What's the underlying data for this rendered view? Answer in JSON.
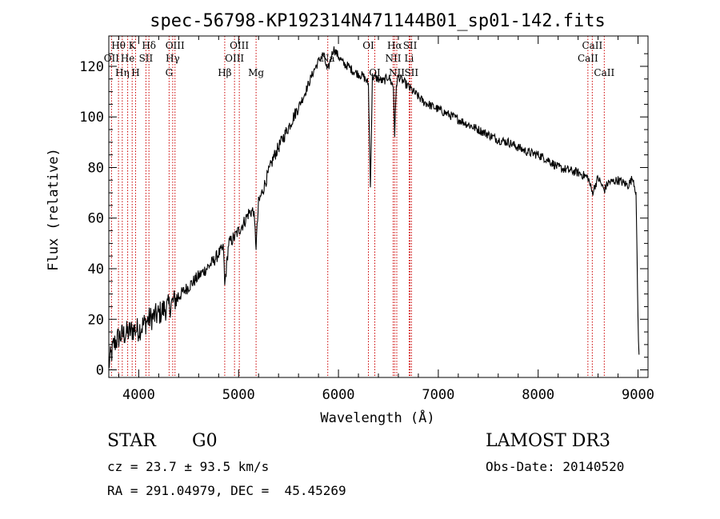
{
  "chart_data": {
    "type": "line",
    "title": "spec-56798-KP192314N471144B01_sp01-142.fits",
    "xlabel": "Wavelength (Å)",
    "ylabel": "Flux (relative)",
    "xlim": [
      3700,
      9100
    ],
    "ylim": [
      -3,
      132
    ],
    "xticks": [
      4000,
      5000,
      6000,
      7000,
      8000,
      9000
    ],
    "yticks": [
      0,
      20,
      40,
      60,
      80,
      100,
      120
    ],
    "series": [
      {
        "name": "spectrum",
        "x": [
          3700,
          3750,
          3800,
          3850,
          3900,
          3950,
          4000,
          4050,
          4100,
          4150,
          4200,
          4250,
          4300,
          4350,
          4400,
          4450,
          4500,
          4550,
          4600,
          4650,
          4700,
          4750,
          4800,
          4850,
          4861,
          4900,
          4950,
          5000,
          5050,
          5100,
          5150,
          5175,
          5200,
          5250,
          5300,
          5350,
          5400,
          5450,
          5500,
          5550,
          5600,
          5650,
          5700,
          5750,
          5800,
          5850,
          5890,
          5950,
          6000,
          6050,
          6100,
          6150,
          6200,
          6250,
          6300,
          6320,
          6340,
          6400,
          6450,
          6500,
          6550,
          6563,
          6580,
          6600,
          6650,
          6700,
          6750,
          6800,
          6850,
          6900,
          6950,
          7000,
          7100,
          7200,
          7300,
          7400,
          7500,
          7600,
          7700,
          7800,
          7900,
          8000,
          8100,
          8200,
          8300,
          8400,
          8500,
          8542,
          8600,
          8662,
          8700,
          8800,
          8900,
          8950,
          8980,
          9000,
          9010
        ],
        "values": [
          2,
          10,
          13,
          14,
          15,
          16,
          16,
          18,
          20,
          21,
          22,
          24,
          25,
          27,
          29,
          31,
          33,
          35,
          37,
          39,
          41,
          43,
          46,
          48,
          33,
          50,
          52,
          55,
          58,
          62,
          63,
          49,
          66,
          72,
          78,
          84,
          88,
          92,
          96,
          100,
          104,
          108,
          113,
          118,
          122,
          125,
          118,
          127,
          124,
          121,
          120,
          118,
          117,
          116,
          113,
          72,
          116,
          115,
          114,
          116,
          112,
          93,
          113,
          116,
          114,
          112,
          110,
          108,
          106,
          105,
          104,
          103,
          101,
          99,
          97,
          95,
          93,
          91,
          90,
          88,
          86,
          85,
          83,
          80,
          79,
          78,
          76,
          70,
          76,
          71,
          74,
          75,
          73,
          76,
          70,
          20,
          6
        ]
      }
    ],
    "spectral_lines": [
      {
        "label": "Hθ",
        "x": 3797,
        "row": 1
      },
      {
        "label": "OII",
        "x": 3727,
        "row": 2
      },
      {
        "label": "Hη",
        "x": 3835,
        "row": 3
      },
      {
        "label": "He",
        "x": 3889,
        "row": 2
      },
      {
        "label": "K",
        "x": 3934,
        "row": 1
      },
      {
        "label": "H",
        "x": 3968,
        "row": 3
      },
      {
        "label": "SII",
        "x": 4072,
        "row": 2
      },
      {
        "label": "Hδ",
        "x": 4102,
        "row": 1
      },
      {
        "label": "OIII",
        "x": 4363,
        "row": 1
      },
      {
        "label": "Hγ",
        "x": 4340,
        "row": 2
      },
      {
        "label": "G",
        "x": 4304,
        "row": 3
      },
      {
        "label": "Hβ",
        "x": 4861,
        "row": 3
      },
      {
        "label": "OIII",
        "x": 5007,
        "row": 1
      },
      {
        "label": "OIII",
        "x": 4959,
        "row": 2
      },
      {
        "label": "Mg",
        "x": 5175,
        "row": 3
      },
      {
        "label": "Na",
        "x": 5893,
        "row": 2
      },
      {
        "label": "OI",
        "x": 6300,
        "row": 1
      },
      {
        "label": "OI",
        "x": 6364,
        "row": 3
      },
      {
        "label": "Hα",
        "x": 6563,
        "row": 1
      },
      {
        "label": "SII",
        "x": 6717,
        "row": 1
      },
      {
        "label": "NII",
        "x": 6548,
        "row": 2
      },
      {
        "label": "Li",
        "x": 6708,
        "row": 2
      },
      {
        "label": "NII",
        "x": 6584,
        "row": 3
      },
      {
        "label": "SII",
        "x": 6731,
        "row": 3
      },
      {
        "label": "CaII",
        "x": 8542,
        "row": 1
      },
      {
        "label": "CaII",
        "x": 8498,
        "row": 2
      },
      {
        "label": "CaII",
        "x": 8662,
        "row": 3
      }
    ]
  },
  "info": {
    "object_class": "STAR",
    "subclass": "G0",
    "survey": "LAMOST DR3",
    "redshift": "cz = 23.7 ± 93.5 km/s",
    "obs_date": "Obs-Date: 20140520",
    "coords": "RA = 291.04979, DEC =  45.45269"
  },
  "colors": {
    "axis": "#000000",
    "spectrum": "#000000",
    "line_markers": "#cc0000"
  }
}
